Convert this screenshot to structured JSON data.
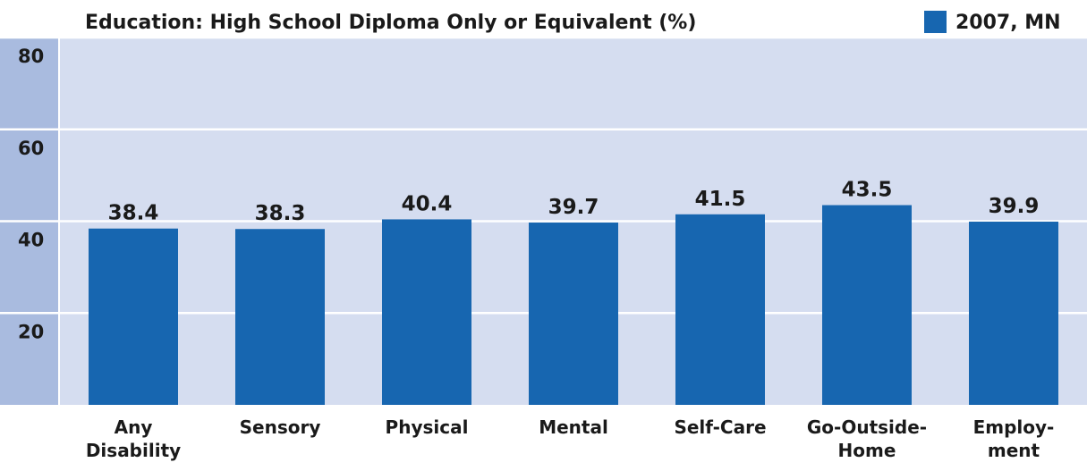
{
  "chart_data": {
    "type": "bar",
    "title": "Education: High School Diploma Only or Equivalent (%)",
    "categories": [
      "Any\nDisability",
      "Sensory",
      "Physical",
      "Mental",
      "Self-Care",
      "Go-Outside-\nHome",
      "Employ-\nment"
    ],
    "series": [
      {
        "name": "2007, MN",
        "color": "#1766b0",
        "values": [
          38.4,
          38.3,
          40.4,
          39.7,
          41.5,
          43.5,
          39.9
        ]
      }
    ],
    "ylim": [
      0,
      80
    ],
    "yticks": [
      20,
      40,
      60,
      80
    ],
    "grid": true,
    "legend": "top-right"
  }
}
